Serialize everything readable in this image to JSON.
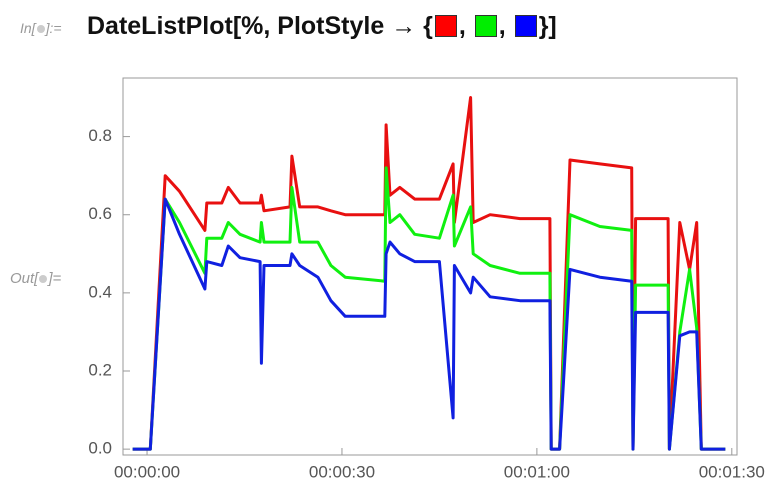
{
  "input": {
    "label_open": "In[",
    "label_close": "]:=",
    "code_prefix": "DateListPlot[%, PlotStyle → {",
    "separators": [
      ",",
      ","
    ],
    "code_suffix": "}]",
    "swatch_colors": [
      "#ff0000",
      "#00ee00",
      "#0000ff"
    ]
  },
  "output": {
    "label_open": "Out[",
    "label_close": "]="
  },
  "chart_data": {
    "type": "line",
    "x": [
      -2.2,
      0.5,
      2.8,
      5,
      8.9,
      9.2,
      11.5,
      12.5,
      14.3,
      17.4,
      17.6,
      18,
      22,
      22.3,
      23.5,
      26.3,
      28.3,
      30.5,
      36.6,
      36.8,
      37.4,
      38.9,
      41.2,
      45,
      47.1,
      47.3,
      49.8,
      50.2,
      52.8,
      57.4,
      62,
      62.2,
      63.5,
      65.1,
      69.7,
      74.6,
      74.8,
      75.2,
      80.2,
      80.4,
      82,
      83.5,
      84.6,
      85.3,
      89
    ],
    "series": [
      {
        "color": "#e81010",
        "values": [
          0,
          0,
          0.7,
          0.66,
          0.56,
          0.63,
          0.63,
          0.67,
          0.63,
          0.63,
          0.65,
          0.61,
          0.62,
          0.75,
          0.62,
          0.62,
          0.61,
          0.6,
          0.6,
          0.83,
          0.65,
          0.67,
          0.64,
          0.64,
          0.73,
          0.58,
          0.9,
          0.58,
          0.6,
          0.59,
          0.59,
          0,
          0,
          0.74,
          0.73,
          0.72,
          0,
          0.59,
          0.59,
          0,
          0.58,
          0.46,
          0.58,
          0,
          0
        ]
      },
      {
        "color": "#10f010",
        "values": [
          0,
          0,
          0.64,
          0.58,
          0.45,
          0.54,
          0.54,
          0.58,
          0.55,
          0.53,
          0.58,
          0.53,
          0.53,
          0.67,
          0.53,
          0.53,
          0.47,
          0.44,
          0.43,
          0.72,
          0.58,
          0.6,
          0.55,
          0.54,
          0.65,
          0.52,
          0.62,
          0.5,
          0.47,
          0.45,
          0.45,
          0,
          0,
          0.6,
          0.57,
          0.56,
          0,
          0.42,
          0.42,
          0,
          0.3,
          0.46,
          0.31,
          0,
          0
        ]
      },
      {
        "color": "#1020e0",
        "values": [
          0,
          0,
          0.64,
          0.55,
          0.41,
          0.48,
          0.47,
          0.52,
          0.49,
          0.48,
          0.22,
          0.47,
          0.47,
          0.5,
          0.47,
          0.44,
          0.38,
          0.34,
          0.34,
          0.5,
          0.53,
          0.5,
          0.48,
          0.48,
          0.08,
          0.47,
          0.4,
          0.44,
          0.39,
          0.38,
          0.38,
          0,
          0,
          0.46,
          0.44,
          0.43,
          0,
          0.35,
          0.35,
          0,
          0.29,
          0.3,
          0.3,
          0,
          0
        ]
      }
    ],
    "xlim": [
      -3.7,
      90.8
    ],
    "ylim": [
      -0.015,
      0.95
    ],
    "xticks": [
      {
        "value": 0,
        "label": "00:00:00"
      },
      {
        "value": 30,
        "label": "00:00:30"
      },
      {
        "value": 60,
        "label": "00:01:00"
      },
      {
        "value": 90,
        "label": "00:01:30"
      }
    ],
    "yticks": [
      {
        "value": 0,
        "label": "0.0"
      },
      0.2,
      0.4,
      0.6,
      0.8
    ]
  }
}
